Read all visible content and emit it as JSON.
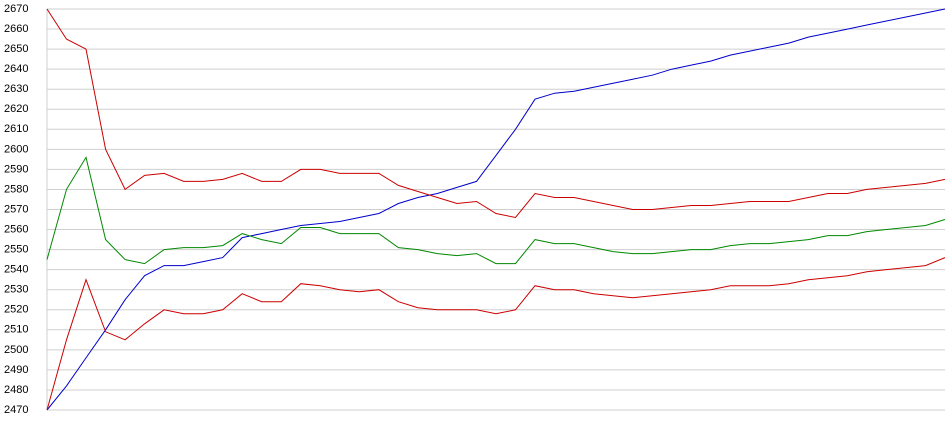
{
  "chart_data": {
    "type": "line",
    "categories": [
      null,
      null,
      null,
      null,
      null,
      null,
      null,
      null,
      null,
      null,
      null,
      null,
      null,
      null,
      null,
      null,
      null,
      null,
      null,
      null,
      null,
      null,
      null,
      null,
      null,
      null,
      null,
      null,
      null,
      null,
      null,
      null,
      null,
      null,
      null,
      null,
      null,
      null,
      null,
      null,
      null,
      null,
      null,
      null,
      null,
      null,
      null
    ],
    "series": [
      {
        "color": "#0000cc",
        "values": [
          2470,
          2482,
          2496,
          2510,
          2525,
          2537,
          2542,
          2542,
          2544,
          2546,
          2556,
          2558,
          2560,
          2562,
          2563,
          2564,
          2566,
          2568,
          2573,
          2576,
          2578,
          2581,
          2584,
          2597,
          2610,
          2625,
          2628,
          2629,
          2631,
          2633,
          2635,
          2637,
          2640,
          2642,
          2644,
          2647,
          2649,
          2651,
          2653,
          2656,
          2658,
          2660,
          2662,
          2664,
          2666,
          2668,
          2670
        ]
      },
      {
        "color": "#cc0000",
        "values": [
          2670,
          2655,
          2650,
          2600,
          2580,
          2587,
          2588,
          2584,
          2584,
          2585,
          2588,
          2584,
          2584,
          2590,
          2590,
          2588,
          2588,
          2588,
          2582,
          2579,
          2576,
          2573,
          2574,
          2568,
          2566,
          2578,
          2576,
          2576,
          2574,
          2572,
          2570,
          2570,
          2571,
          2572,
          2572,
          2573,
          2574,
          2574,
          2574,
          2576,
          2578,
          2578,
          2580,
          2581,
          2582,
          2583,
          2585
        ]
      },
      {
        "color": "#008800",
        "values": [
          2545,
          2580,
          2596,
          2555,
          2545,
          2543,
          2550,
          2551,
          2551,
          2552,
          2558,
          2555,
          2553,
          2561,
          2561,
          2558,
          2558,
          2558,
          2551,
          2550,
          2548,
          2547,
          2548,
          2543,
          2543,
          2555,
          2553,
          2553,
          2551,
          2549,
          2548,
          2548,
          2549,
          2550,
          2550,
          2552,
          2553,
          2553,
          2554,
          2555,
          2557,
          2557,
          2559,
          2560,
          2561,
          2562,
          2565
        ]
      },
      {
        "color": "#cc0000",
        "values": [
          2470,
          2505,
          2535,
          2509,
          2505,
          2513,
          2520,
          2518,
          2518,
          2520,
          2528,
          2524,
          2524,
          2533,
          2532,
          2530,
          2529,
          2530,
          2524,
          2521,
          2520,
          2520,
          2520,
          2518,
          2520,
          2532,
          2530,
          2530,
          2528,
          2527,
          2526,
          2527,
          2528,
          2529,
          2530,
          2532,
          2532,
          2532,
          2533,
          2535,
          2536,
          2537,
          2539,
          2540,
          2541,
          2542,
          2546
        ]
      }
    ],
    "ylim": [
      2470,
      2670
    ],
    "yticks": [
      2470,
      2480,
      2490,
      2500,
      2510,
      2520,
      2530,
      2540,
      2550,
      2560,
      2570,
      2580,
      2590,
      2600,
      2610,
      2620,
      2630,
      2640,
      2650,
      2660,
      2670
    ],
    "grid": true
  }
}
